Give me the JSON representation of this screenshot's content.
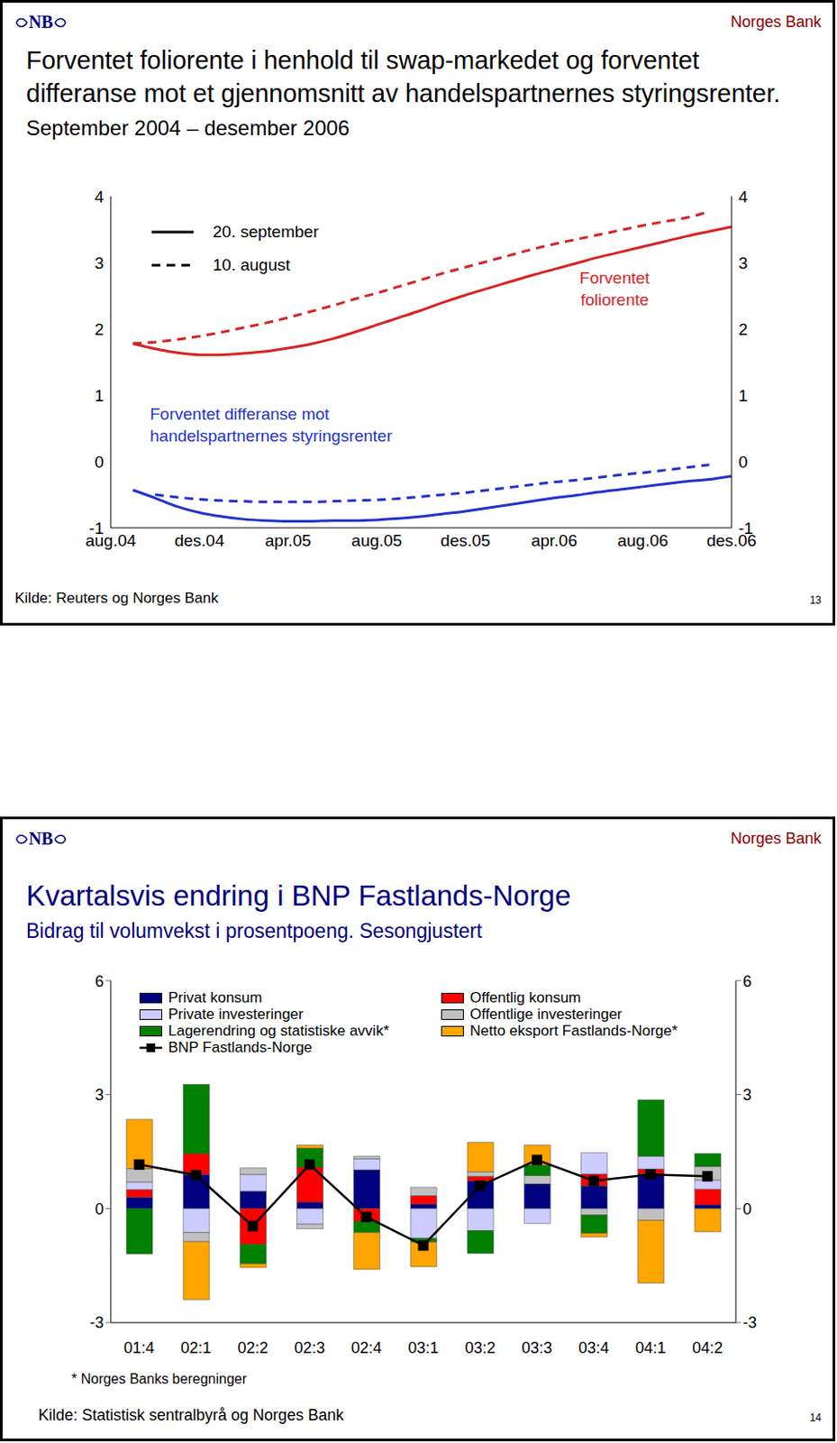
{
  "chart_data": [
    {
      "type": "line",
      "brand": "Norges Bank",
      "logo": "NB",
      "title": "Forventet foliorente i henhold til swap-markedet og forventet differanse mot et gjennomsnitt av handelspartnernes styringsrenter.",
      "subtitle": "September 2004 – desember 2006",
      "source": "Kilde: Reuters og Norges Bank",
      "page": 13,
      "categories": [
        "aug.04",
        null,
        null,
        null,
        "des.04",
        null,
        null,
        null,
        "apr.05",
        null,
        null,
        null,
        "aug.05",
        null,
        null,
        null,
        "des.05",
        null,
        null,
        null,
        "apr.06",
        null,
        null,
        null,
        "aug.06",
        null,
        null,
        null,
        "des.06"
      ],
      "ylim": [
        -1,
        4
      ],
      "yticks": [
        -1,
        0,
        1,
        2,
        3,
        4
      ],
      "grid": false,
      "series": [
        {
          "name": "20. september",
          "color": "#d92323",
          "line_style": "solid",
          "values": [
            null,
            1.78,
            1.7,
            1.64,
            1.61,
            1.61,
            1.63,
            1.66,
            1.71,
            1.77,
            1.85,
            1.95,
            2.06,
            2.17,
            2.28,
            2.4,
            2.51,
            2.61,
            2.71,
            2.81,
            2.9,
            2.99,
            3.08,
            3.16,
            3.24,
            3.32,
            3.4,
            3.47,
            3.54
          ]
        },
        {
          "name": "10. august",
          "color": "#d92323",
          "line_style": "dashed",
          "values": [
            null,
            1.78,
            1.8,
            1.84,
            1.89,
            1.95,
            2.02,
            2.09,
            2.17,
            2.26,
            2.35,
            2.45,
            2.54,
            2.64,
            2.74,
            2.84,
            2.93,
            3.02,
            3.11,
            3.2,
            3.28,
            3.35,
            3.42,
            3.49,
            3.56,
            3.62,
            3.68,
            3.77,
            null
          ]
        },
        {
          "name": "20. september",
          "color": "#2233cc",
          "line_style": "solid",
          "values": [
            null,
            -0.43,
            -0.55,
            -0.68,
            -0.77,
            -0.83,
            -0.87,
            -0.89,
            -0.9,
            -0.9,
            -0.89,
            -0.89,
            -0.88,
            -0.86,
            -0.83,
            -0.79,
            -0.75,
            -0.7,
            -0.65,
            -0.6,
            -0.55,
            -0.51,
            -0.46,
            -0.42,
            -0.38,
            -0.34,
            -0.3,
            -0.27,
            -0.22
          ]
        },
        {
          "name": "10. august",
          "color": "#2233cc",
          "line_style": "dashed",
          "values": [
            null,
            null,
            -0.5,
            -0.54,
            -0.57,
            -0.59,
            -0.6,
            -0.61,
            -0.61,
            -0.61,
            -0.6,
            -0.59,
            -0.58,
            -0.56,
            -0.53,
            -0.5,
            -0.47,
            -0.43,
            -0.39,
            -0.35,
            -0.31,
            -0.28,
            -0.24,
            -0.2,
            -0.17,
            -0.13,
            -0.09,
            -0.05,
            null
          ]
        }
      ],
      "annotations": [
        {
          "text": "Forventet foliorente",
          "color": "#d92323"
        },
        {
          "text": "Forventet differanse mot handelspartnernes styringsrenter",
          "color": "#2233cc"
        }
      ]
    },
    {
      "type": "bar",
      "stacked": true,
      "brand": "Norges Bank",
      "logo": "NB",
      "title": "Kvartalsvis endring i BNP Fastlands-Norge",
      "subtitle": "Bidrag til volumvekst i prosentpoeng. Sesongjustert",
      "footnote": "* Norges Banks beregninger",
      "source": "Kilde: Statistisk sentralbyrå og Norges Bank",
      "page": 14,
      "categories": [
        "01:4",
        "02:1",
        "02:2",
        "02:3",
        "02:4",
        "03:1",
        "03:2",
        "03:3",
        "03:4",
        "04:1",
        "04:2"
      ],
      "ylim": [
        -3,
        6
      ],
      "yticks": [
        -3,
        0,
        3,
        6
      ],
      "grid": false,
      "series": [
        {
          "name": "Privat konsum",
          "color": "#000080",
          "values": [
            0.3,
            0.9,
            0.46,
            0.17,
            1.02,
            0.12,
            0.73,
            0.65,
            0.6,
            0.92,
            0.1
          ]
        },
        {
          "name": "Offentlig konsum",
          "color": "#ff0000",
          "values": [
            0.2,
            0.55,
            -0.94,
            0.92,
            -0.34,
            0.22,
            0.12,
            0,
            0.31,
            0.12,
            0.41
          ]
        },
        {
          "name": "Private investeringer",
          "color": "#ccccff",
          "values": [
            0.2,
            -0.63,
            0.44,
            -0.41,
            0.29,
            -0.78,
            -0.58,
            -0.39,
            0.56,
            0.34,
            0.24
          ]
        },
        {
          "name": "Offentlige investeringer",
          "color": "#c0c0c0",
          "values": [
            0.35,
            -0.24,
            0.17,
            -0.12,
            0.07,
            0.22,
            0.12,
            0.22,
            -0.17,
            -0.31,
            0.36
          ]
        },
        {
          "name": "Lagerendring og statistiske avvik*",
          "color": "#008000",
          "values": [
            -1.19,
            1.82,
            -0.51,
            0.5,
            -0.29,
            -0.1,
            -0.6,
            0.27,
            -0.48,
            1.48,
            0.34
          ]
        },
        {
          "name": "Netto eksport Fastlands-Norge*",
          "color": "#ffa500",
          "values": [
            1.3,
            -1.53,
            -0.1,
            0.08,
            -0.97,
            -0.65,
            0.77,
            0.53,
            -0.1,
            -1.65,
            -0.61
          ]
        },
        {
          "name": "BNP Fastlands-Norge",
          "type": "line",
          "marker": "square",
          "color": "#000000",
          "values": [
            1.16,
            0.88,
            -0.46,
            1.16,
            -0.22,
            -0.97,
            0.6,
            1.28,
            0.73,
            0.9,
            0.85
          ]
        }
      ]
    }
  ]
}
